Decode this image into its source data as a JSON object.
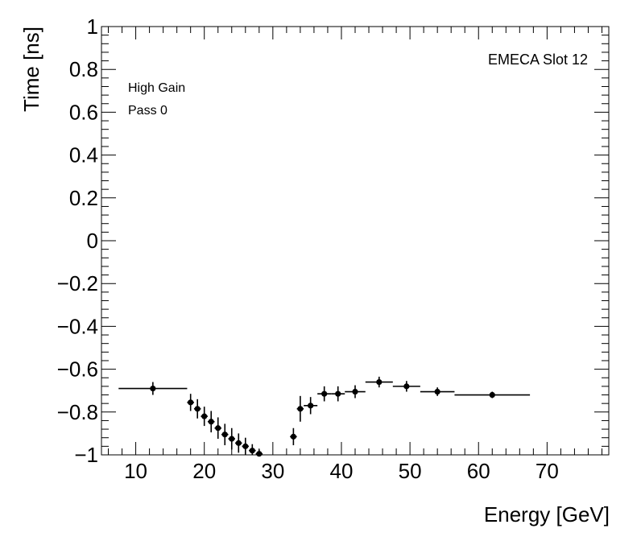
{
  "chart_data": {
    "type": "scatter",
    "xlabel": "Energy [GeV]",
    "ylabel": "Time [ns]",
    "xlim": [
      5,
      79
    ],
    "ylim": [
      -1,
      1
    ],
    "x_ticks": [
      10,
      20,
      30,
      40,
      50,
      60,
      70
    ],
    "y_ticks": [
      -1,
      -0.8,
      -0.6,
      -0.4,
      -0.2,
      0,
      0.2,
      0.4,
      0.6,
      0.8,
      1
    ],
    "x_tick_labels": [
      "10",
      "20",
      "30",
      "40",
      "50",
      "60",
      "70"
    ],
    "y_tick_labels": [
      "−1",
      "−0.8",
      "−0.6",
      "−0.4",
      "−0.2",
      "0",
      "0.2",
      "0.4",
      "0.6",
      "0.8",
      "1"
    ],
    "grid": false,
    "annotations": {
      "top_right": "EMECA Slot 12",
      "line1": "High Gain",
      "line2": "Pass 0"
    },
    "points": [
      {
        "x": 12.5,
        "xlo": 7.5,
        "xhi": 17.5,
        "y": -0.69,
        "err": 0.03
      },
      {
        "x": 18.0,
        "xlo": 17.5,
        "xhi": 18.5,
        "y": -0.755,
        "err": 0.04
      },
      {
        "x": 19.0,
        "xlo": 18.5,
        "xhi": 19.5,
        "y": -0.785,
        "err": 0.045
      },
      {
        "x": 20.0,
        "xlo": 19.5,
        "xhi": 20.5,
        "y": -0.82,
        "err": 0.045
      },
      {
        "x": 21.0,
        "xlo": 20.5,
        "xhi": 21.5,
        "y": -0.845,
        "err": 0.05
      },
      {
        "x": 22.0,
        "xlo": 21.5,
        "xhi": 22.5,
        "y": -0.875,
        "err": 0.05
      },
      {
        "x": 23.0,
        "xlo": 22.5,
        "xhi": 23.5,
        "y": -0.905,
        "err": 0.05
      },
      {
        "x": 24.0,
        "xlo": 23.5,
        "xhi": 24.5,
        "y": -0.925,
        "err": 0.05
      },
      {
        "x": 25.0,
        "xlo": 24.5,
        "xhi": 25.5,
        "y": -0.945,
        "err": 0.045
      },
      {
        "x": 26.0,
        "xlo": 25.5,
        "xhi": 26.5,
        "y": -0.96,
        "err": 0.04
      },
      {
        "x": 27.0,
        "xlo": 26.5,
        "xhi": 27.5,
        "y": -0.98,
        "err": 0.03
      },
      {
        "x": 28.0,
        "xlo": 27.5,
        "xhi": 28.5,
        "y": -0.995,
        "err": 0.02
      },
      {
        "x": 33.0,
        "xlo": 32.5,
        "xhi": 33.5,
        "y": -0.915,
        "err": 0.04
      },
      {
        "x": 34.0,
        "xlo": 33.5,
        "xhi": 34.5,
        "y": -0.785,
        "err": 0.06
      },
      {
        "x": 35.5,
        "xlo": 34.5,
        "xhi": 36.5,
        "y": -0.77,
        "err": 0.04
      },
      {
        "x": 37.5,
        "xlo": 36.5,
        "xhi": 38.5,
        "y": -0.715,
        "err": 0.035
      },
      {
        "x": 39.5,
        "xlo": 38.5,
        "xhi": 40.5,
        "y": -0.715,
        "err": 0.035
      },
      {
        "x": 42.0,
        "xlo": 40.5,
        "xhi": 43.5,
        "y": -0.705,
        "err": 0.03
      },
      {
        "x": 45.5,
        "xlo": 43.5,
        "xhi": 47.5,
        "y": -0.66,
        "err": 0.025
      },
      {
        "x": 49.5,
        "xlo": 47.5,
        "xhi": 51.5,
        "y": -0.68,
        "err": 0.025
      },
      {
        "x": 54.0,
        "xlo": 51.5,
        "xhi": 56.5,
        "y": -0.705,
        "err": 0.02
      },
      {
        "x": 62.0,
        "xlo": 56.5,
        "xhi": 67.5,
        "y": -0.72,
        "err": 0.015
      }
    ]
  }
}
